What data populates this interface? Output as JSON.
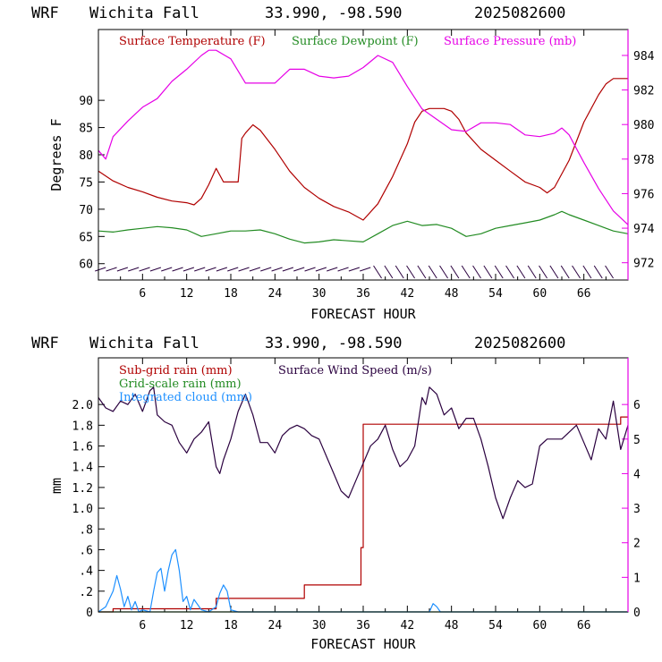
{
  "charts": [
    {
      "title": {
        "model": "WRF",
        "station": "Wichita Fall",
        "coords": "33.990, -98.590",
        "run": "2025082600"
      },
      "type": "line",
      "xlabel": "FORECAST HOUR",
      "ylabel": "Degrees F",
      "x_ticks": [
        "6",
        "12",
        "18",
        "24",
        "30",
        "36",
        "42",
        "48",
        "54",
        "60",
        "66"
      ],
      "xlim": [
        0,
        72
      ],
      "left_axis": {
        "ylim": [
          57,
          103
        ],
        "ticks": [
          "60",
          "65",
          "70",
          "75",
          "80",
          "85",
          "90"
        ]
      },
      "right_axis": {
        "ylim": [
          971,
          985.5
        ],
        "ticks": [
          "972",
          "974",
          "976",
          "978",
          "980",
          "982",
          "984"
        ]
      },
      "legend": [
        "Surface Temperature (F)",
        "Surface Dewpoint (F)",
        "Surface Pressure (mb)"
      ],
      "colors": {
        "temperature": "#b00000",
        "dewpoint": "#228b22",
        "pressure": "#e600e6",
        "wind": "#2a003f",
        "axis_right": "#e600e6"
      },
      "chart_data": {
        "type": "line",
        "x_unit": "forecast hour",
        "series": [
          {
            "name": "Surface Temperature (F)",
            "axis": "left",
            "x": [
              0,
              2,
              4,
              6,
              8,
              10,
              12,
              13,
              14,
              15,
              16,
              17,
              18,
              19,
              19.5,
              20,
              21,
              22,
              24,
              26,
              28,
              30,
              32,
              34,
              36,
              38,
              40,
              42,
              43,
              44,
              45,
              46,
              47,
              48,
              49,
              50,
              52,
              54,
              56,
              58,
              60,
              61,
              62,
              64,
              66,
              68,
              69,
              70,
              71,
              72
            ],
            "y": [
              77,
              75.2,
              74,
              73.2,
              72.2,
              71.5,
              71.2,
              70.8,
              72,
              74.5,
              77.5,
              75,
              75,
              75,
              83,
              84,
              85.5,
              84.5,
              81,
              77,
              74,
              72,
              70.5,
              69.5,
              68,
              71,
              76,
              82,
              86,
              88,
              88.5,
              88.5,
              88.5,
              88,
              86.5,
              84,
              81,
              79,
              77,
              75,
              74,
              73,
              74,
              79,
              86,
              91,
              93,
              94,
              94,
              94
            ]
          },
          {
            "name": "Surface Dewpoint (F)",
            "axis": "left",
            "x": [
              0,
              2,
              4,
              6,
              8,
              10,
              12,
              14,
              16,
              18,
              20,
              22,
              24,
              26,
              28,
              30,
              32,
              34,
              36,
              38,
              40,
              42,
              44,
              46,
              48,
              50,
              52,
              54,
              56,
              58,
              60,
              62,
              63,
              64,
              66,
              68,
              70,
              72
            ],
            "y": [
              66,
              65.8,
              66.2,
              66.5,
              66.8,
              66.6,
              66.2,
              65,
              65.5,
              66,
              66,
              66.2,
              65.5,
              64.5,
              63.8,
              64,
              64.4,
              64.2,
              64,
              65.5,
              67,
              67.8,
              67,
              67.2,
              66.5,
              65,
              65.5,
              66.5,
              67,
              67.5,
              68,
              69,
              69.6,
              69,
              68,
              67,
              66,
              65.5
            ]
          },
          {
            "name": "Surface Pressure (mb)",
            "axis": "right",
            "x": [
              0,
              1,
              2,
              4,
              6,
              8,
              10,
              12,
              14,
              15,
              16,
              18,
              20,
              22,
              24,
              26,
              28,
              30,
              32,
              34,
              36,
              38,
              40,
              42,
              44,
              46,
              48,
              50,
              52,
              54,
              56,
              58,
              60,
              62,
              63,
              64,
              66,
              68,
              70,
              72
            ],
            "y": [
              978.5,
              978,
              979.3,
              980.2,
              981,
              981.5,
              982.5,
              983.2,
              984,
              984.3,
              984.3,
              983.8,
              982.4,
              982.4,
              982.4,
              983.2,
              983.2,
              982.8,
              982.7,
              982.8,
              983.3,
              984,
              983.6,
              982.2,
              980.9,
              980.3,
              979.7,
              979.6,
              980.1,
              980.1,
              980,
              979.4,
              979.3,
              979.5,
              979.8,
              979.4,
              977.8,
              976.3,
              975,
              974.2
            ]
          }
        ],
        "wind_barbs": "row of wind barbs along the bottom of the panel"
      }
    },
    {
      "title": {
        "model": "WRF",
        "station": "Wichita Fall",
        "coords": "33.990, -98.590",
        "run": "2025082600"
      },
      "type": "line",
      "xlabel": "FORECAST HOUR",
      "ylabel": "mm",
      "x_ticks": [
        "6",
        "12",
        "18",
        "24",
        "30",
        "36",
        "42",
        "48",
        "54",
        "60",
        "66"
      ],
      "xlim": [
        0,
        72
      ],
      "left_axis": {
        "ylim": [
          0,
          2.45
        ],
        "ticks": [
          "0",
          ".2",
          ".4",
          ".6",
          ".8",
          "1.0",
          "1.2",
          "1.4",
          "1.6",
          "1.8",
          "2.0"
        ]
      },
      "right_axis": {
        "ylim": [
          0,
          7.35
        ],
        "ticks": [
          "0",
          "1",
          "2",
          "3",
          "4",
          "5",
          "6"
        ]
      },
      "legend": [
        "Sub-grid rain (mm)",
        "Grid-scale rain (mm)",
        "Integrated cloud (mm)",
        "Surface Wind Speed (m/s)"
      ],
      "colors": {
        "subgrid": "#b00000",
        "gridscale": "#228b22",
        "cloud": "#1e90ff",
        "wind": "#2a003f",
        "axis_right": "#e600e6"
      },
      "chart_data": {
        "type": "line",
        "x_unit": "forecast hour",
        "series": [
          {
            "name": "Sub-grid rain (mm)",
            "axis": "left",
            "x": [
              0,
              2,
              2,
              16,
              16,
              28,
              28,
              35.7,
              35.7,
              36,
              36,
              71,
              71,
              72
            ],
            "y": [
              0,
              0,
              0.03,
              0.03,
              0.13,
              0.13,
              0.26,
              0.26,
              0.62,
              0.62,
              1.81,
              1.81,
              1.88,
              1.88
            ]
          },
          {
            "name": "Grid-scale rain (mm)",
            "axis": "left",
            "x": [
              0,
              72
            ],
            "y": [
              0,
              0
            ]
          },
          {
            "name": "Integrated cloud (mm)",
            "axis": "left",
            "x": [
              0,
              1,
              2,
              2.5,
              3,
              3.5,
              4,
              4.5,
              5,
              5.5,
              6,
              7,
              7.5,
              8,
              8.5,
              9,
              9.5,
              10,
              10.5,
              11,
              11.5,
              12,
              12.5,
              13,
              14,
              15,
              16,
              16.5,
              17,
              17.5,
              18,
              19,
              20,
              45,
              45.5,
              46,
              46.5,
              47,
              72
            ],
            "y": [
              0,
              0.05,
              0.2,
              0.35,
              0.22,
              0.05,
              0.15,
              0.02,
              0.1,
              0,
              0.02,
              0,
              0.2,
              0.38,
              0.42,
              0.2,
              0.4,
              0.55,
              0.6,
              0.4,
              0.1,
              0.15,
              0.02,
              0.12,
              0.02,
              0,
              0.05,
              0.18,
              0.26,
              0.2,
              0.02,
              0,
              0,
              0,
              0.08,
              0.05,
              0,
              0,
              0
            ]
          },
          {
            "name": "Surface Wind Speed (m/s)",
            "axis": "right",
            "x": [
              0,
              1,
              2,
              3,
              4,
              5,
              6,
              7,
              7.5,
              8,
              9,
              10,
              11,
              12,
              13,
              14,
              15,
              16,
              16.5,
              17,
              18,
              19,
              20,
              21,
              22,
              23,
              24,
              25,
              26,
              27,
              28,
              29,
              30,
              31,
              32,
              33,
              34,
              35,
              36,
              37,
              38,
              39,
              40,
              41,
              42,
              43,
              44,
              44.5,
              45,
              46,
              47,
              48,
              49,
              50,
              51,
              52,
              53,
              54,
              55,
              56,
              57,
              58,
              59,
              60,
              61,
              62,
              63,
              64,
              65,
              66,
              67,
              68,
              69,
              70,
              71,
              72
            ],
            "y": [
              6.2,
              5.9,
              5.8,
              6.1,
              6.0,
              6.3,
              5.8,
              6.4,
              6.5,
              5.7,
              5.5,
              5.4,
              4.9,
              4.6,
              5.0,
              5.2,
              5.5,
              4.2,
              4.0,
              4.4,
              5.0,
              5.8,
              6.3,
              5.7,
              4.9,
              4.9,
              4.6,
              5.1,
              5.3,
              5.4,
              5.3,
              5.1,
              5.0,
              4.5,
              4.0,
              3.5,
              3.3,
              3.8,
              4.3,
              4.8,
              5.0,
              5.4,
              4.7,
              4.2,
              4.4,
              4.8,
              6.2,
              6.0,
              6.5,
              6.3,
              5.7,
              5.9,
              5.3,
              5.6,
              5.6,
              5.0,
              4.2,
              3.3,
              2.7,
              3.3,
              3.8,
              3.6,
              3.7,
              4.8,
              5.0,
              5.0,
              5.0,
              5.2,
              5.4,
              4.9,
              4.4,
              5.3,
              5.0,
              6.1,
              4.7,
              5.4
            ]
          }
        ]
      }
    }
  ]
}
